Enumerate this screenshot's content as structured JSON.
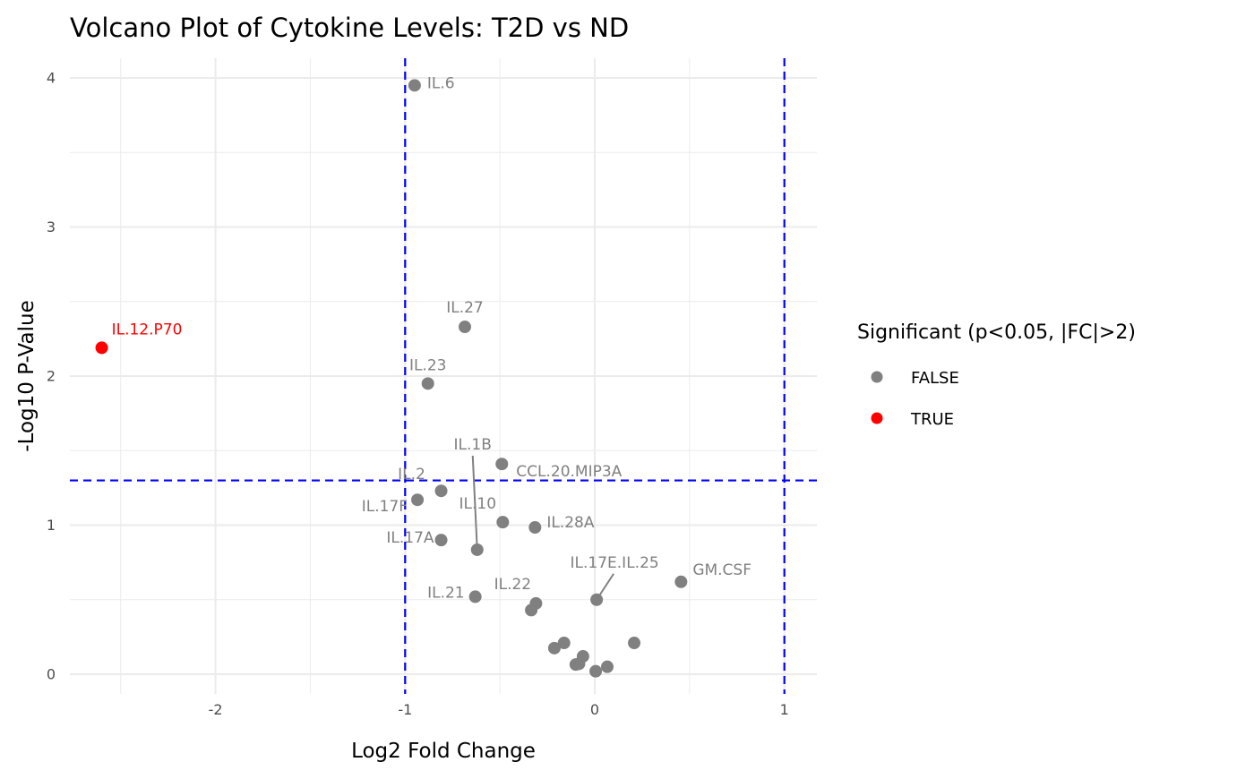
{
  "chart_data": {
    "type": "scatter",
    "title": "Volcano Plot of Cytokine Levels: T2D vs ND",
    "xlabel": "Log2 Fold Change",
    "ylabel": "-Log10 P-Value",
    "xlim": [
      -2.75,
      1.17
    ],
    "ylim": [
      -0.13,
      4.1
    ],
    "x_ticks": [
      -2,
      -1,
      0,
      1
    ],
    "x_tick_labels": [
      "-2",
      "-1",
      "0",
      "1"
    ],
    "y_ticks": [
      0,
      1,
      2,
      3,
      4
    ],
    "y_tick_labels": [
      "0",
      "1",
      "2",
      "3",
      "4"
    ],
    "grid": true,
    "thresholds": {
      "x": [
        -1,
        1
      ],
      "y": 1.3,
      "color": "#0000ff",
      "style": "dashed"
    },
    "legend": {
      "title": "Significant (p<0.05, |FC|>2)",
      "placement": "right",
      "entries": [
        {
          "label": "FALSE",
          "color": "#808080"
        },
        {
          "label": "TRUE",
          "color": "#ff0000"
        }
      ]
    },
    "points": [
      {
        "label": "IL.12.P70",
        "x": -2.6,
        "y": 2.19,
        "significant": true
      },
      {
        "label": "IL.6",
        "x": -0.95,
        "y": 3.95,
        "significant": false
      },
      {
        "label": "IL.27",
        "x": -0.685,
        "y": 2.33,
        "significant": false
      },
      {
        "label": "IL.23",
        "x": -0.88,
        "y": 1.95,
        "significant": false
      },
      {
        "label": "CCL.20.MIP3A",
        "x": -0.49,
        "y": 1.41,
        "significant": false
      },
      {
        "label": "IL.2",
        "x": -0.81,
        "y": 1.23,
        "significant": false
      },
      {
        "label": "IL.17F",
        "x": -0.935,
        "y": 1.17,
        "significant": false
      },
      {
        "label": "IL.10",
        "x": -0.485,
        "y": 1.02,
        "significant": false
      },
      {
        "label": "IL.28A",
        "x": -0.315,
        "y": 0.985,
        "significant": false
      },
      {
        "label": "IL.17A",
        "x": -0.81,
        "y": 0.9,
        "significant": false
      },
      {
        "label": "IL.1B",
        "x": -0.62,
        "y": 0.835,
        "significant": false
      },
      {
        "label": "GM.CSF",
        "x": 0.455,
        "y": 0.62,
        "significant": false
      },
      {
        "label": "IL.17E.IL.25",
        "x": 0.01,
        "y": 0.5,
        "significant": false
      },
      {
        "label": "IL.21",
        "x": -0.63,
        "y": 0.52,
        "significant": false
      },
      {
        "label": "IL.22",
        "x": -0.31,
        "y": 0.475,
        "significant": false
      },
      {
        "label": "",
        "x": -0.335,
        "y": 0.43,
        "significant": false
      },
      {
        "label": "",
        "x": -0.213,
        "y": 0.175,
        "significant": false
      },
      {
        "label": "",
        "x": -0.162,
        "y": 0.21,
        "significant": false
      },
      {
        "label": "",
        "x": 0.208,
        "y": 0.21,
        "significant": false
      },
      {
        "label": "",
        "x": -0.062,
        "y": 0.12,
        "significant": false
      },
      {
        "label": "",
        "x": -0.1,
        "y": 0.065,
        "significant": false
      },
      {
        "label": "",
        "x": -0.083,
        "y": 0.07,
        "significant": false
      },
      {
        "label": "",
        "x": 0.005,
        "y": 0.02,
        "significant": false
      },
      {
        "label": "",
        "x": 0.066,
        "y": 0.05,
        "significant": false
      }
    ]
  }
}
